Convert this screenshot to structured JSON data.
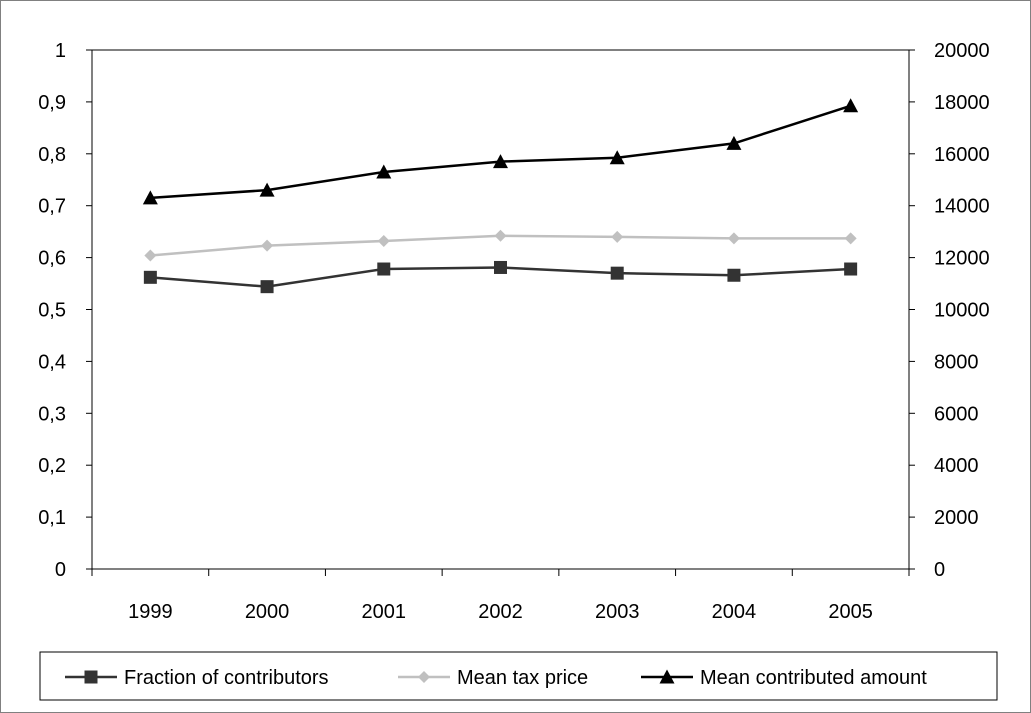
{
  "chart_data": {
    "type": "line",
    "title": "",
    "xlabel": "",
    "categories": [
      "1999",
      "2000",
      "2001",
      "2002",
      "2003",
      "2004",
      "2005"
    ],
    "y_left": {
      "ylim": [
        0,
        1
      ],
      "ticks": [
        "0",
        "0,1",
        "0,2",
        "0,3",
        "0,4",
        "0,5",
        "0,6",
        "0,7",
        "0,8",
        "0,9",
        "1"
      ]
    },
    "y_right": {
      "ylim": [
        0,
        20000
      ],
      "ticks": [
        "0",
        "2000",
        "4000",
        "6000",
        "8000",
        "10000",
        "12000",
        "14000",
        "16000",
        "18000",
        "20000"
      ]
    },
    "grid": false,
    "legend_position": "bottom",
    "series": [
      {
        "name": "Fraction of contributors",
        "axis": "left",
        "marker": "square",
        "color": "#333333",
        "values": [
          0.562,
          0.544,
          0.578,
          0.581,
          0.57,
          0.566,
          0.578
        ]
      },
      {
        "name": "Mean tax price",
        "axis": "left",
        "marker": "diamond",
        "color": "#c0c0c0",
        "values": [
          0.604,
          0.623,
          0.632,
          0.642,
          0.64,
          0.637,
          0.637
        ]
      },
      {
        "name": "Mean contributed amount",
        "axis": "right",
        "marker": "triangle",
        "color": "#000000",
        "values": [
          14300,
          14600,
          15300,
          15700,
          15850,
          16400,
          17850
        ]
      }
    ]
  }
}
